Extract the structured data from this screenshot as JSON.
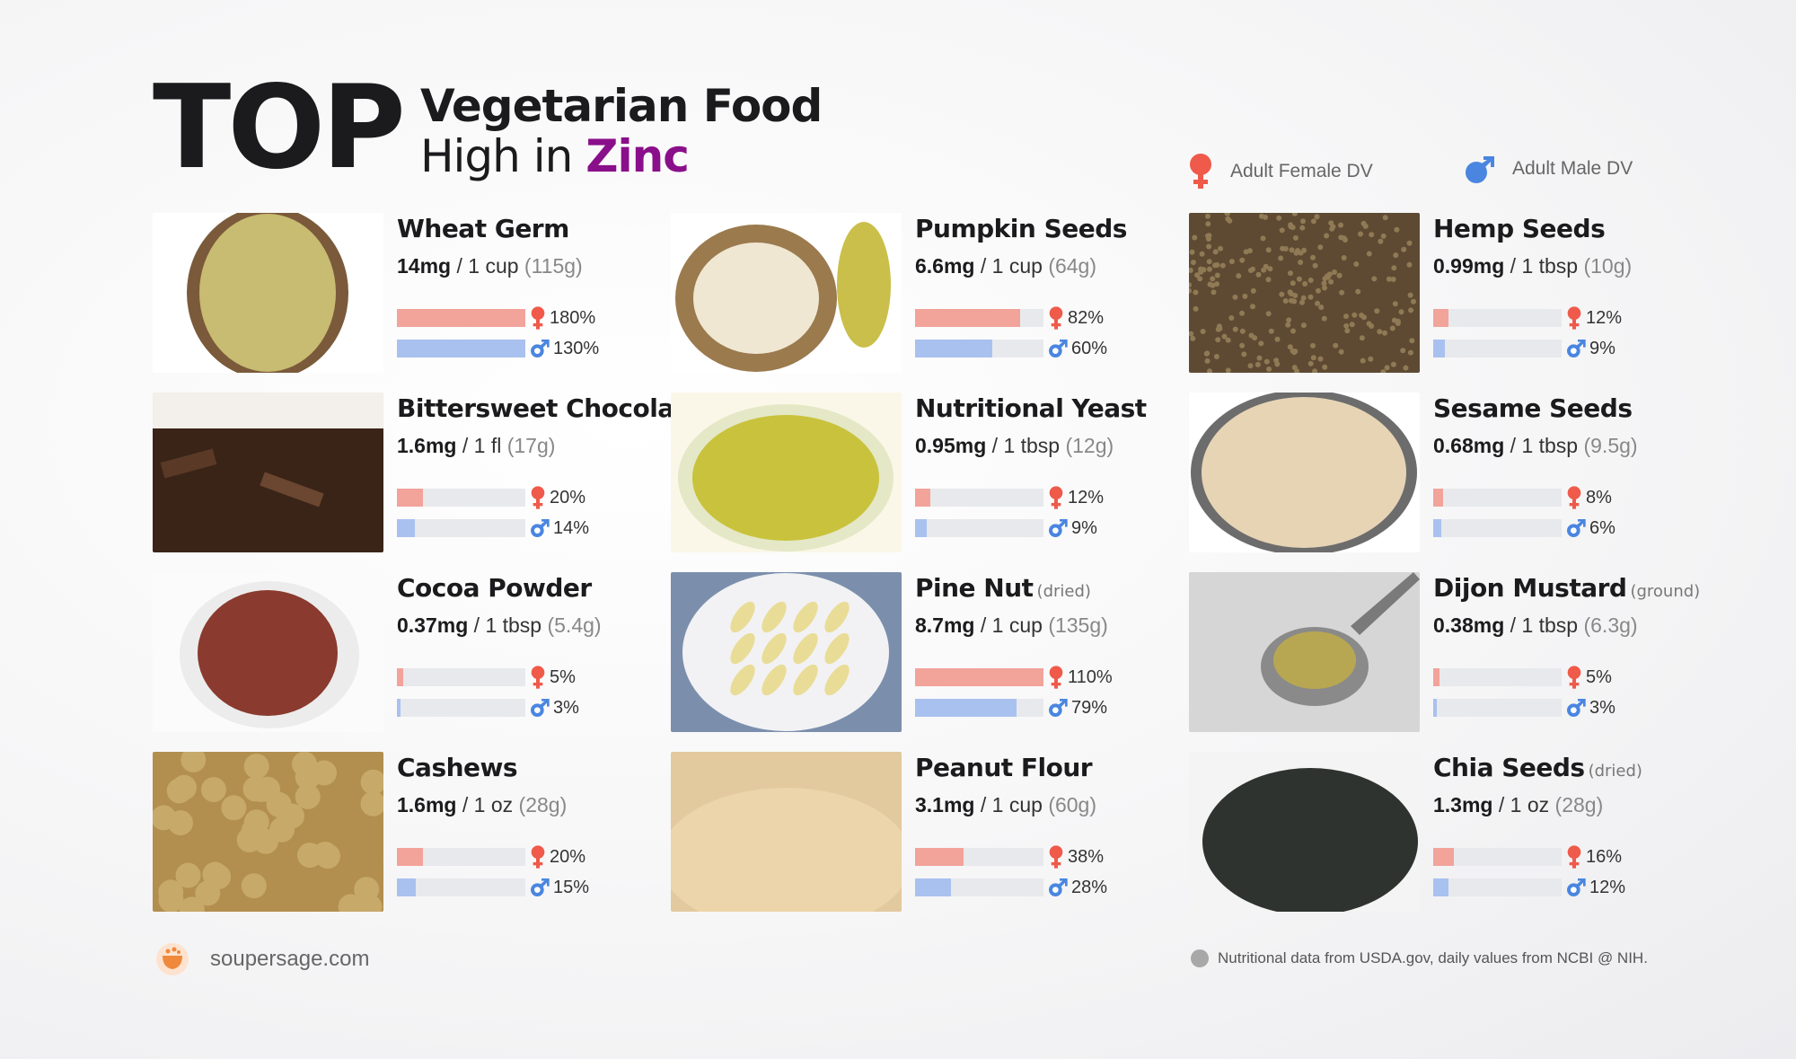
{
  "header": {
    "top": "TOP",
    "line1": "Vegetarian Food",
    "line2_prefix": "High in",
    "line2_highlight": "Zinc",
    "highlight_color": "#8a0f8a"
  },
  "legend": {
    "female_label": "Adult Female DV",
    "male_label": "Adult Male DV",
    "female_color": "#ef5a4a",
    "male_color": "#4a86e0"
  },
  "items": [
    {
      "name": "Wheat Germ",
      "note": "",
      "mg": "14mg",
      "serving": "1 cup",
      "weight": "(115g)",
      "female_pct": "180%",
      "male_pct": "130%",
      "female_fill": 1.0,
      "male_fill": 1.0,
      "image": "wheat-germ"
    },
    {
      "name": "Bittersweet Chocolate",
      "note": "",
      "mg": "1.6mg",
      "serving": "1 fl",
      "weight": "(17g)",
      "female_pct": "20%",
      "male_pct": "14%",
      "female_fill": 0.2,
      "male_fill": 0.14,
      "image": "bittersweet-chocolate"
    },
    {
      "name": "Cocoa Powder",
      "note": "",
      "mg": "0.37mg",
      "serving": "1 tbsp",
      "weight": "(5.4g)",
      "female_pct": "5%",
      "male_pct": "3%",
      "female_fill": 0.05,
      "male_fill": 0.03,
      "image": "cocoa-powder"
    },
    {
      "name": "Cashews",
      "note": "",
      "mg": "1.6mg",
      "serving": "1 oz",
      "weight": "(28g)",
      "female_pct": "20%",
      "male_pct": "15%",
      "female_fill": 0.2,
      "male_fill": 0.15,
      "image": "cashews"
    },
    {
      "name": "Pumpkin Seeds",
      "note": "",
      "mg": "6.6mg",
      "serving": "1 cup",
      "weight": "(64g)",
      "female_pct": "82%",
      "male_pct": "60%",
      "female_fill": 0.82,
      "male_fill": 0.6,
      "image": "pumpkin-seeds"
    },
    {
      "name": "Nutritional Yeast",
      "note": "",
      "mg": "0.95mg",
      "serving": "1 tbsp",
      "weight": "(12g)",
      "female_pct": "12%",
      "male_pct": "9%",
      "female_fill": 0.12,
      "male_fill": 0.09,
      "image": "nutritional-yeast"
    },
    {
      "name": "Pine Nut",
      "note": "(dried)",
      "mg": "8.7mg",
      "serving": "1 cup",
      "weight": "(135g)",
      "female_pct": "110%",
      "male_pct": "79%",
      "female_fill": 1.0,
      "male_fill": 0.79,
      "image": "pine-nut"
    },
    {
      "name": "Peanut Flour",
      "note": "",
      "mg": "3.1mg",
      "serving": "1 cup",
      "weight": "(60g)",
      "female_pct": "38%",
      "male_pct": "28%",
      "female_fill": 0.38,
      "male_fill": 0.28,
      "image": "peanut-flour"
    },
    {
      "name": "Hemp Seeds",
      "note": "",
      "mg": "0.99mg",
      "serving": "1 tbsp",
      "weight": "(10g)",
      "female_pct": "12%",
      "male_pct": "9%",
      "female_fill": 0.12,
      "male_fill": 0.09,
      "image": "hemp-seeds"
    },
    {
      "name": "Sesame Seeds",
      "note": "",
      "mg": "0.68mg",
      "serving": "1 tbsp",
      "weight": "(9.5g)",
      "female_pct": "8%",
      "male_pct": "6%",
      "female_fill": 0.08,
      "male_fill": 0.06,
      "image": "sesame-seeds"
    },
    {
      "name": "Dijon Mustard",
      "note": "(ground)",
      "mg": "0.38mg",
      "serving": "1 tbsp",
      "weight": "(6.3g)",
      "female_pct": "5%",
      "male_pct": "3%",
      "female_fill": 0.05,
      "male_fill": 0.03,
      "image": "dijon-mustard"
    },
    {
      "name": "Chia Seeds",
      "note": "(dried)",
      "mg": "1.3mg",
      "serving": "1 oz",
      "weight": "(28g)",
      "female_pct": "16%",
      "male_pct": "12%",
      "female_fill": 0.16,
      "male_fill": 0.12,
      "image": "chia-seeds"
    }
  ],
  "footer": {
    "site": "soupersage.com",
    "note": "Nutritional data from USDA.gov, daily values from NCBI @ NIH."
  }
}
